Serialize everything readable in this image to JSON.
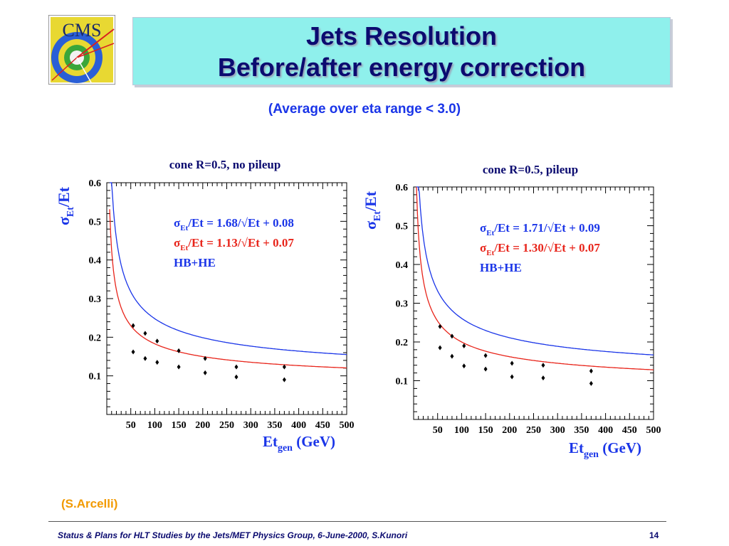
{
  "slide": {
    "title_line1": "Jets Resolution",
    "title_line2": "Before/after energy correction",
    "subtitle": "(Average over eta range < 3.0)",
    "credit": "(S.Arcelli)",
    "footer": "Status & Plans for HLT Studies by the Jets/MET Physics Group, 6-June-2000, S.Kunori",
    "page_number": "14",
    "logo_text": "CMS"
  },
  "colors": {
    "title_text": "#0b0b70",
    "title_box": "#8ff0ec",
    "subtitle": "#1a35e8",
    "credit": "#f29a00",
    "before_curve": "#1a35e8",
    "after_curve": "#e8241a"
  },
  "chart_data": [
    {
      "type": "scatter",
      "title": "cone R=0.5, no pileup",
      "xlabel": "Et",
      "xlabel_sub": "gen",
      "xlabel_unit": "(GeV)",
      "ylabel": "σ",
      "ylabel_sub": "Et",
      "ylabel_rest": "/Et",
      "xlim": [
        0,
        500
      ],
      "ylim": [
        0,
        0.6
      ],
      "xticks": [
        50,
        100,
        150,
        200,
        250,
        300,
        350,
        400,
        450,
        500
      ],
      "yticks": [
        0.1,
        0.2,
        0.3,
        0.4,
        0.5,
        0.6
      ],
      "legend": [
        {
          "sym": "σ",
          "sub": "Et",
          "text": "/Et = 1.68/√Et + 0.08",
          "color": "#1a35e8"
        },
        {
          "sym": "σ",
          "sub": "Et",
          "text": "/Et = 1.13/√Et + 0.07",
          "color": "#e8241a"
        },
        {
          "text": "HB+HE",
          "color": "#1a35e8"
        }
      ],
      "fits": [
        {
          "a": 1.68,
          "b": 0.08,
          "color": "#1a35e8"
        },
        {
          "a": 1.13,
          "b": 0.07,
          "color": "#e8241a"
        }
      ],
      "series": [
        {
          "points": [
            [
              55,
              0.23
            ],
            [
              80,
              0.21
            ],
            [
              105,
              0.19
            ],
            [
              150,
              0.165
            ],
            [
              205,
              0.145
            ],
            [
              270,
              0.123
            ],
            [
              370,
              0.123
            ]
          ]
        },
        {
          "points": [
            [
              55,
              0.162
            ],
            [
              80,
              0.145
            ],
            [
              105,
              0.135
            ],
            [
              150,
              0.123
            ],
            [
              205,
              0.108
            ],
            [
              270,
              0.097
            ],
            [
              370,
              0.09
            ]
          ]
        }
      ]
    },
    {
      "type": "scatter",
      "title": "cone R=0.5, pileup",
      "xlabel": "Et",
      "xlabel_sub": "gen",
      "xlabel_unit": "(GeV)",
      "ylabel": "σ",
      "ylabel_sub": "Et",
      "ylabel_rest": "/Et",
      "xlim": [
        0,
        500
      ],
      "ylim": [
        0,
        0.6
      ],
      "xticks": [
        50,
        100,
        150,
        200,
        250,
        300,
        350,
        400,
        450,
        500
      ],
      "yticks": [
        0.1,
        0.2,
        0.3,
        0.4,
        0.5,
        0.6
      ],
      "legend": [
        {
          "sym": "σ",
          "sub": "Et",
          "text": "/Et = 1.71/√Et + 0.09",
          "color": "#1a35e8"
        },
        {
          "sym": "σ",
          "sub": "Et",
          "text": "/Et = 1.30/√Et + 0.07",
          "color": "#e8241a"
        },
        {
          "text": "HB+HE",
          "color": "#1a35e8"
        }
      ],
      "fits": [
        {
          "a": 1.71,
          "b": 0.09,
          "color": "#1a35e8"
        },
        {
          "a": 1.3,
          "b": 0.07,
          "color": "#e8241a"
        }
      ],
      "series": [
        {
          "points": [
            [
              55,
              0.24
            ],
            [
              80,
              0.215
            ],
            [
              105,
              0.19
            ],
            [
              150,
              0.165
            ],
            [
              205,
              0.145
            ],
            [
              270,
              0.14
            ],
            [
              370,
              0.125
            ]
          ]
        },
        {
          "points": [
            [
              55,
              0.185
            ],
            [
              80,
              0.163
            ],
            [
              105,
              0.138
            ],
            [
              150,
              0.13
            ],
            [
              205,
              0.11
            ],
            [
              270,
              0.107
            ],
            [
              370,
              0.093
            ]
          ]
        }
      ]
    }
  ]
}
